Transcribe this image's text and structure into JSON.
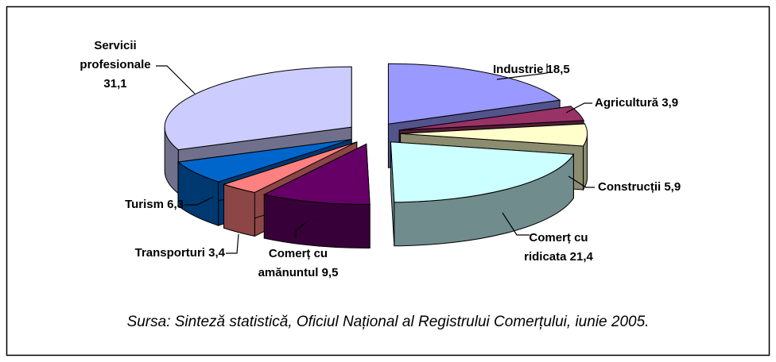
{
  "chart_data": {
    "type": "pie3d",
    "categories": [
      "Industrie",
      "Agricultură",
      "Construcții",
      "Comerț cu ridicata",
      "Comerț cu amănuntul",
      "Transporturi",
      "Turism",
      "Servicii profesionale"
    ],
    "values": [
      18.5,
      3.9,
      5.9,
      21.4,
      9.5,
      3.4,
      6.3,
      31.1
    ],
    "value_labels": [
      "18,5",
      "3,9",
      "5,9",
      "21,4",
      "9,5",
      "3,4",
      "6,3",
      "31,1"
    ],
    "colors": [
      "#9999ff",
      "#993366",
      "#ffffcc",
      "#ccffff",
      "#660066",
      "#ff8080",
      "#0066cc",
      "#ccccff"
    ],
    "source": "Sursa: Sinteză statistică, Oficiul Național al Registrului Comerțului, iunie 2005."
  }
}
